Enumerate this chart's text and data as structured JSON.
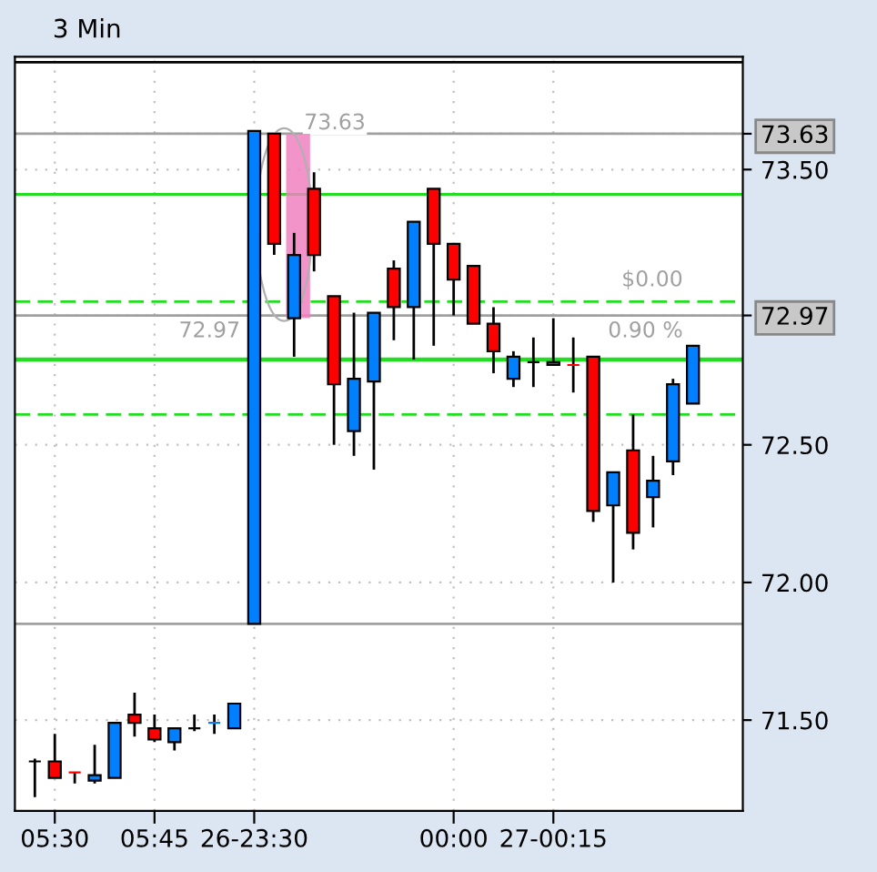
{
  "chart_data": {
    "type": "candlestick",
    "title": "3 Min",
    "categories": [
      null,
      "05:30",
      null,
      null,
      null,
      null,
      "05:45",
      null,
      null,
      null,
      null,
      "26-23:30",
      null,
      null,
      null,
      null,
      null,
      null,
      null,
      null,
      null,
      "00:00",
      null,
      null,
      null,
      null,
      "27-00:15",
      null,
      null,
      null,
      null,
      null,
      null,
      null
    ],
    "ohlc": [
      [
        71.35,
        71.36,
        71.22,
        71.35
      ],
      [
        71.35,
        71.45,
        71.29,
        71.29
      ],
      [
        71.31,
        71.31,
        71.27,
        71.31
      ],
      [
        71.28,
        71.41,
        71.27,
        71.3
      ],
      [
        71.29,
        71.49,
        71.29,
        71.49
      ],
      [
        71.52,
        71.6,
        71.44,
        71.49
      ],
      [
        71.47,
        71.52,
        71.42,
        71.43
      ],
      [
        71.42,
        71.47,
        71.39,
        71.47
      ],
      [
        71.47,
        71.52,
        71.46,
        71.47
      ],
      [
        71.49,
        71.52,
        71.45,
        71.49
      ],
      [
        71.47,
        71.56,
        71.47,
        71.56
      ],
      [
        71.85,
        73.64,
        71.85,
        73.64
      ],
      [
        73.63,
        73.63,
        73.19,
        73.23
      ],
      [
        72.96,
        73.27,
        72.82,
        73.19
      ],
      [
        73.43,
        73.49,
        73.13,
        73.19
      ],
      [
        73.04,
        73.04,
        72.5,
        72.72
      ],
      [
        72.55,
        72.98,
        72.46,
        72.74
      ],
      [
        72.73,
        72.98,
        72.41,
        72.98
      ],
      [
        73.14,
        73.17,
        72.88,
        73.0
      ],
      [
        73.0,
        73.31,
        72.81,
        73.31
      ],
      [
        73.43,
        73.43,
        72.86,
        73.23
      ],
      [
        73.23,
        73.23,
        72.97,
        73.1
      ],
      [
        73.15,
        73.15,
        72.94,
        72.94
      ],
      [
        72.94,
        73.0,
        72.76,
        72.84
      ],
      [
        72.74,
        72.84,
        72.71,
        72.82
      ],
      [
        72.8,
        72.89,
        72.71,
        72.8
      ],
      [
        72.8,
        72.96,
        72.79,
        72.79
      ],
      [
        72.79,
        72.89,
        72.69,
        72.79
      ],
      [
        72.82,
        72.82,
        72.22,
        72.26
      ],
      [
        72.28,
        72.4,
        72.0,
        72.4
      ],
      [
        72.48,
        72.61,
        72.12,
        72.18
      ],
      [
        72.31,
        72.46,
        72.2,
        72.37
      ],
      [
        72.44,
        72.74,
        72.39,
        72.72
      ],
      [
        72.65,
        72.86,
        72.65,
        72.86
      ]
    ],
    "colors": [
      "#000000",
      "#ff0000",
      "#ff0000",
      "#0080ff",
      "#0080ff",
      "#ff0000",
      "#ff0000",
      "#0080ff",
      "#000000",
      "#0080ff",
      "#0080ff",
      "#0080ff",
      "#ff0000",
      "#0080ff",
      "#ff0000",
      "#ff0000",
      "#0080ff",
      "#0080ff",
      "#ff0000",
      "#0080ff",
      "#ff0000",
      "#ff0000",
      "#ff0000",
      "#ff0000",
      "#0080ff",
      "#000000",
      "#ff0000",
      "#ff0000",
      "#ff0000",
      "#0080ff",
      "#ff0000",
      "#0080ff",
      "#0080ff",
      "#0080ff"
    ],
    "ylim": [
      71.17,
      73.91
    ],
    "yticks": [
      {
        "value": 71.5,
        "label": "71.50"
      },
      {
        "value": 72.0,
        "label": "72.00"
      },
      {
        "value": 72.5,
        "label": "72.50"
      },
      {
        "value": 72.97,
        "label": "72.97"
      },
      {
        "value": 73.5,
        "label": "73.50"
      },
      {
        "value": 73.63,
        "label": "73.63"
      }
    ],
    "ref_lines": [
      {
        "axis": "y",
        "value": 73.89,
        "color": "#000000",
        "line_style": "solid"
      },
      {
        "axis": "y",
        "value": 73.63,
        "label": "73.63",
        "color": "#a0a0a0",
        "line_style": "solid"
      },
      {
        "axis": "y",
        "value": 73.41,
        "color": "#22dd22",
        "line_style": "solid"
      },
      {
        "axis": "y",
        "value": 73.02,
        "color": "#22dd22",
        "line_style": "dashed"
      },
      {
        "axis": "y",
        "value": 72.97,
        "label": "72.97",
        "color": "#a0a0a0",
        "line_style": "solid"
      },
      {
        "axis": "y",
        "value": 72.81,
        "color": "#22dd22",
        "line_style": "solid"
      },
      {
        "axis": "y",
        "value": 72.61,
        "color": "#22dd22",
        "line_style": "dashed"
      },
      {
        "axis": "y",
        "value": 71.85,
        "color": "#a0a0a0",
        "line_style": "solid"
      }
    ],
    "annotations": [
      "$0.00",
      "0.90 %"
    ],
    "grid": true
  }
}
